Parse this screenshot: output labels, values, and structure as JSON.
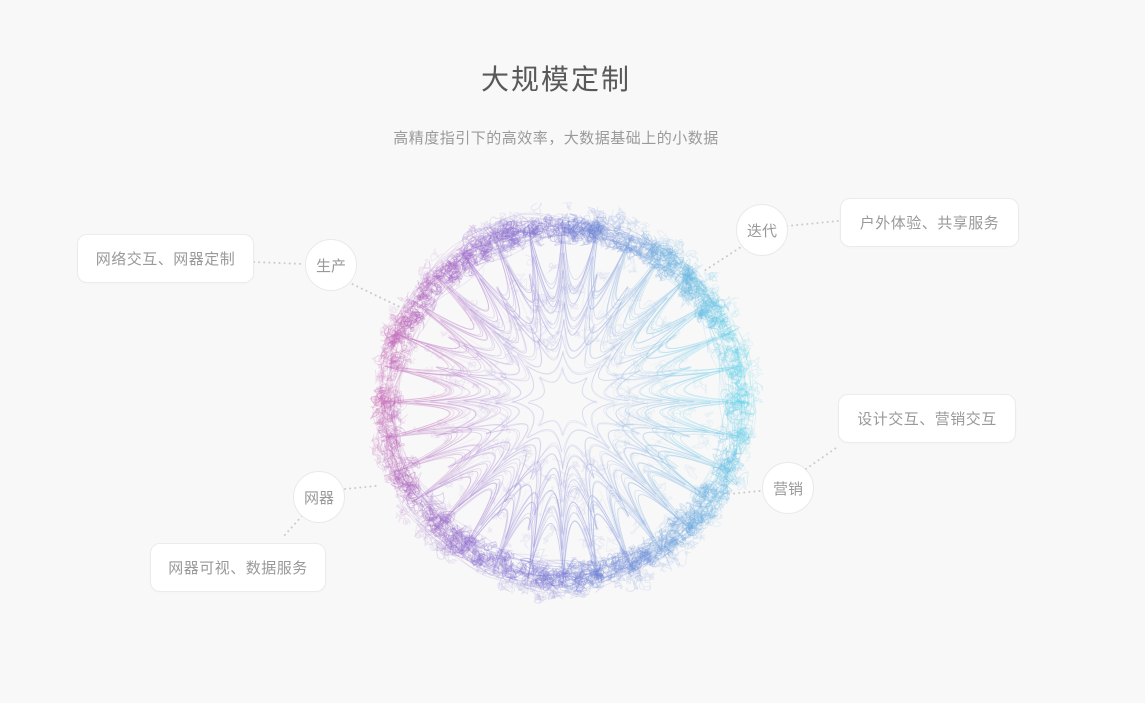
{
  "header": {
    "title": "大规模定制",
    "subtitle": "高精度指引下的高效率，大数据基础上的小数据"
  },
  "diagram": {
    "nodes": [
      {
        "id": "production",
        "label": "生产"
      },
      {
        "id": "iteration",
        "label": "迭代"
      },
      {
        "id": "marketing",
        "label": "营销"
      },
      {
        "id": "device",
        "label": "网器"
      }
    ],
    "cards": [
      {
        "id": "production-card",
        "label": "网络交互、网器定制"
      },
      {
        "id": "iteration-card",
        "label": "户外体验、共享服务"
      },
      {
        "id": "marketing-card",
        "label": "设计交互、营销交互"
      },
      {
        "id": "device-card",
        "label": "网器可视、数据服务"
      }
    ],
    "colors": {
      "background": "#f8f8f8",
      "title_text": "#595959",
      "body_text": "#999999",
      "card_border": "#ebebeb",
      "connector": "#cbcbcb",
      "sphere_palette": [
        "#bf4da6",
        "#8f58c4",
        "#6566cc",
        "#5f9fd8",
        "#4ccfe6"
      ],
      "sphere_bottom_tint": "#5c63cf"
    }
  }
}
